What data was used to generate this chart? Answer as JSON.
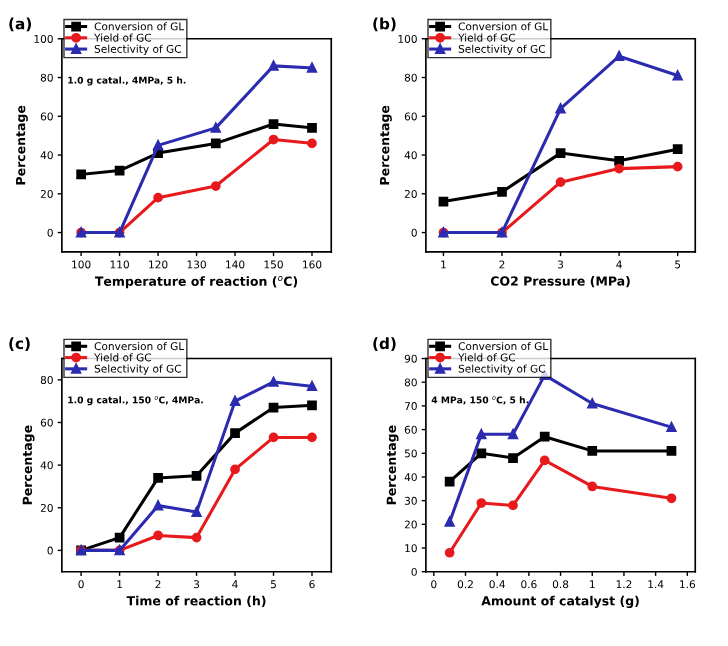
{
  "chart_data": [
    {
      "type": "line",
      "title": "(a)",
      "xlabel": "Temperature of reaction ($^{o}$C)",
      "ylabel": "Percentage",
      "x": [
        100,
        110,
        120,
        135,
        150,
        160
      ],
      "xlim": [
        95,
        165
      ],
      "xticks": [
        100,
        110,
        120,
        130,
        140,
        150,
        160
      ],
      "ylim": [
        -10,
        100
      ],
      "yticks": [
        0,
        20,
        40,
        60,
        80,
        100
      ],
      "legend": "top left",
      "grid": false,
      "annotations": [
        {
          "text": "1.0 g catal., 4MPa, 5 h."
        }
      ],
      "series": [
        {
          "name": "Conversion of GL",
          "color": "#000000",
          "marker": "square",
          "values": [
            30,
            32,
            41,
            46,
            56,
            54
          ]
        },
        {
          "name": "Yield of GC",
          "color": "#e8191c",
          "marker": "circle",
          "values": [
            0,
            0,
            18,
            24,
            48,
            46
          ]
        },
        {
          "name": "Selectivity of GC",
          "color": "#2b2bb0",
          "marker": "triangle",
          "values": [
            0,
            0,
            45,
            54,
            86,
            85
          ]
        }
      ]
    },
    {
      "type": "line",
      "title": "(b)",
      "xlabel": "CO2 Pressure (MPa)",
      "ylabel": "Percentage",
      "x": [
        1,
        2,
        3,
        4,
        5
      ],
      "xlim": [
        0.7,
        5.3
      ],
      "xticks": [
        1,
        2,
        3,
        4,
        5
      ],
      "ylim": [
        -10,
        100
      ],
      "yticks": [
        0,
        20,
        40,
        60,
        80,
        100
      ],
      "legend": "top left",
      "grid": false,
      "series": [
        {
          "name": "Conversion of GL",
          "color": "#000000",
          "marker": "square",
          "values": [
            16,
            21,
            41,
            37,
            43
          ]
        },
        {
          "name": "Yield of GC",
          "color": "#e8191c",
          "marker": "circle",
          "values": [
            0,
            0,
            26,
            33,
            34
          ]
        },
        {
          "name": "Selectivity of GC",
          "color": "#2b2bb0",
          "marker": "triangle",
          "values": [
            0,
            0,
            64,
            91,
            81
          ]
        }
      ]
    },
    {
      "type": "line",
      "title": "(c)",
      "xlabel": "Time of reaction (h)",
      "ylabel": "Percentage",
      "x": [
        0,
        1,
        2,
        3,
        4,
        5,
        6
      ],
      "xlim": [
        -0.5,
        6.5
      ],
      "xticks": [
        0,
        1,
        2,
        3,
        4,
        5,
        6
      ],
      "ylim": [
        -10,
        90
      ],
      "yticks": [
        0,
        20,
        40,
        60,
        80
      ],
      "legend": "top left",
      "grid": false,
      "annotations": [
        {
          "text": "1.0 g catal., 150 $^{o}$C, 4MPa."
        }
      ],
      "series": [
        {
          "name": "Conversion of GL",
          "color": "#000000",
          "marker": "square",
          "values": [
            0,
            6,
            34,
            35,
            55,
            67,
            68
          ]
        },
        {
          "name": "Yield of GC",
          "color": "#e8191c",
          "marker": "circle",
          "values": [
            0,
            0,
            7,
            6,
            38,
            53,
            53
          ]
        },
        {
          "name": "Selectivity of GC",
          "color": "#2b2bb0",
          "marker": "triangle",
          "values": [
            0,
            0,
            21,
            18,
            70,
            79,
            77
          ]
        }
      ]
    },
    {
      "type": "line",
      "title": "(d)",
      "xlabel": "Amount of catalyst (g)",
      "ylabel": "Percentage",
      "x": [
        0.1,
        0.3,
        0.5,
        0.7,
        1.0,
        1.5
      ],
      "xlim": [
        -0.05,
        1.65
      ],
      "xticks": [
        0.0,
        0.2,
        0.4,
        0.6,
        0.8,
        1.0,
        1.2,
        1.4,
        1.6
      ],
      "ylim": [
        0,
        90
      ],
      "yticks": [
        0,
        10,
        20,
        30,
        40,
        50,
        60,
        70,
        80,
        90
      ],
      "legend": "top left",
      "grid": false,
      "annotations": [
        {
          "text": "4 MPa, 150 $^{o}$C, 5 h."
        }
      ],
      "series": [
        {
          "name": "Conversion of GL",
          "color": "#000000",
          "marker": "square",
          "values": [
            38,
            50,
            48,
            57,
            51,
            51
          ]
        },
        {
          "name": "Yield of GC",
          "color": "#e8191c",
          "marker": "circle",
          "values": [
            8,
            29,
            28,
            47,
            36,
            31
          ]
        },
        {
          "name": "Selectivity of GC",
          "color": "#2b2bb0",
          "marker": "triangle",
          "values": [
            21,
            58,
            58,
            83,
            71,
            61
          ]
        }
      ]
    }
  ]
}
